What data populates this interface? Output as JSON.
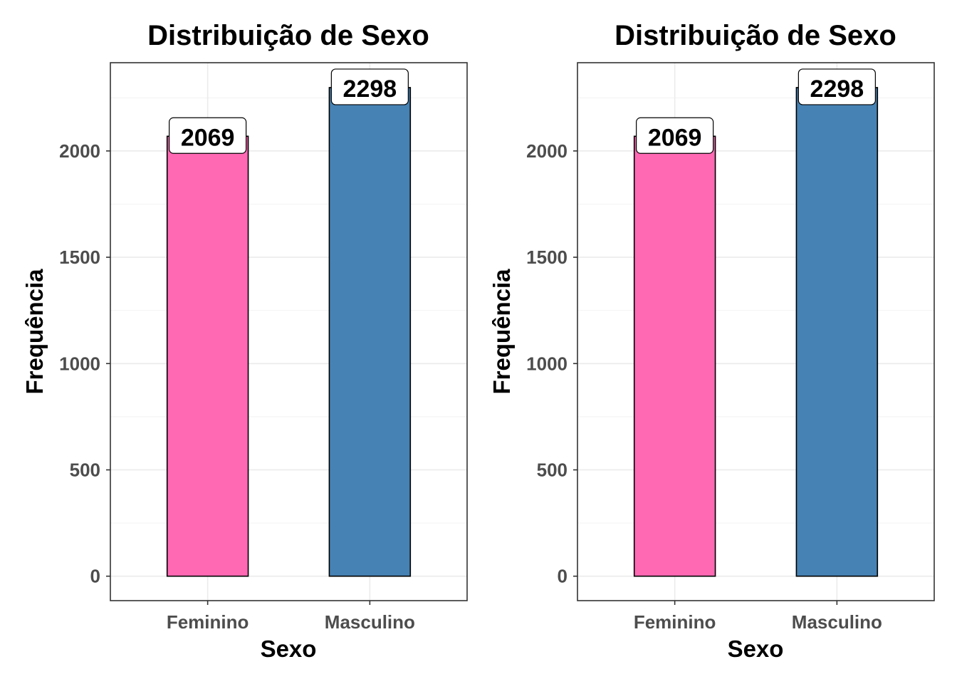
{
  "chart_data": [
    {
      "type": "bar",
      "title": "Distribuição de Sexo",
      "xlabel": "Sexo",
      "ylabel": "Frequência",
      "categories": [
        "Feminino",
        "Masculino"
      ],
      "values": [
        2069,
        2298
      ],
      "bar_colors": [
        "#ff69b4",
        "#4682b4"
      ],
      "ylim": [
        -115,
        2415
      ],
      "yticks": [
        0,
        500,
        1000,
        1500,
        2000
      ],
      "grid": true,
      "legend": "none"
    },
    {
      "type": "bar",
      "title": "Distribuição de Sexo",
      "xlabel": "Sexo",
      "ylabel": "Frequência",
      "categories": [
        "Feminino",
        "Masculino"
      ],
      "values": [
        2069,
        2298
      ],
      "bar_colors": [
        "#ff69b4",
        "#4682b4"
      ],
      "ylim": [
        -115,
        2415
      ],
      "yticks": [
        0,
        500,
        1000,
        1500,
        2000
      ],
      "grid": true,
      "legend": "none"
    }
  ]
}
